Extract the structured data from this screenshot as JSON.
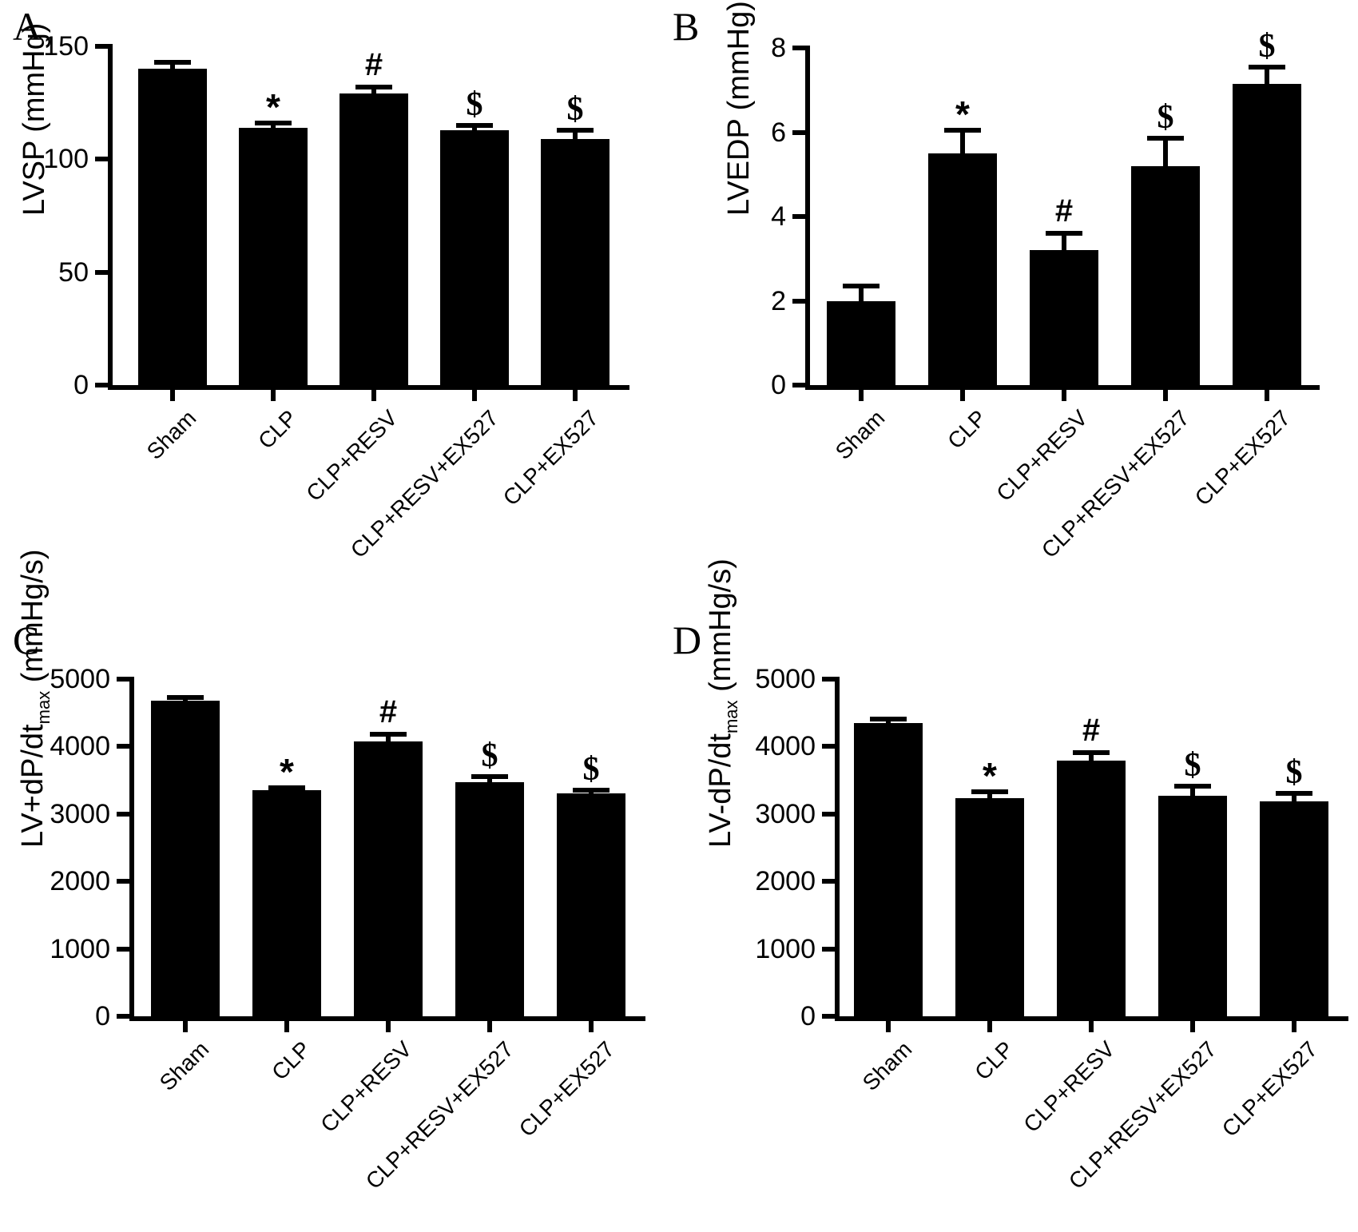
{
  "chart_data": [
    {
      "type": "bar",
      "panel_letter": "A",
      "ylabel": "LVSP (mmHg)",
      "ylabel_sub": "",
      "ylabel_post": "",
      "categories": [
        "Sham",
        "CLP",
        "CLP+RESV",
        "CLP+RESV+EX527",
        "CLP+EX527"
      ],
      "values": [
        140,
        114,
        129,
        113,
        109
      ],
      "error_top": [
        143,
        116,
        132,
        115,
        113
      ],
      "significance": [
        "",
        "*",
        "#",
        "$",
        "$"
      ],
      "ylim": [
        0,
        150
      ],
      "yticks": [
        0,
        50,
        100,
        150
      ],
      "bar_color": "#000000",
      "grid": "off",
      "legend": "none"
    },
    {
      "type": "bar",
      "panel_letter": "B",
      "ylabel": "LVEDP (mmHg)",
      "ylabel_sub": "",
      "ylabel_post": "",
      "categories": [
        "Sham",
        "CLP",
        "CLP+RESV",
        "CLP+RESV+EX527",
        "CLP+EX527"
      ],
      "values": [
        2.0,
        5.5,
        3.2,
        5.2,
        7.15
      ],
      "error_top": [
        2.35,
        6.05,
        3.6,
        5.85,
        7.55
      ],
      "significance": [
        "",
        "*",
        "#",
        "$",
        "$"
      ],
      "ylim": [
        0,
        8
      ],
      "yticks": [
        0,
        2,
        4,
        6,
        8
      ],
      "bar_color": "#000000",
      "grid": "off",
      "legend": "none"
    },
    {
      "type": "bar",
      "panel_letter": "C",
      "ylabel": "LV+dP/dt",
      "ylabel_sub": "max",
      "ylabel_post": " (mmHg/s)",
      "categories": [
        "Sham",
        "CLP",
        "CLP+RESV",
        "CLP+RESV+EX527",
        "CLP+EX527"
      ],
      "values": [
        4680,
        3350,
        4080,
        3470,
        3300
      ],
      "error_top": [
        4730,
        3390,
        4180,
        3560,
        3350
      ],
      "significance": [
        "",
        "*",
        "#",
        "$",
        "$"
      ],
      "ylim": [
        0,
        5000
      ],
      "yticks": [
        0,
        1000,
        2000,
        3000,
        4000,
        5000
      ],
      "bar_color": "#000000",
      "grid": "off",
      "legend": "none"
    },
    {
      "type": "bar",
      "panel_letter": "D",
      "ylabel": "LV-dP/dt",
      "ylabel_sub": "max",
      "ylabel_post": " (mmHg/s)",
      "categories": [
        "Sham",
        "CLP",
        "CLP+RESV",
        "CLP+RESV+EX527",
        "CLP+EX527"
      ],
      "values": [
        4350,
        3230,
        3790,
        3270,
        3190
      ],
      "error_top": [
        4410,
        3330,
        3910,
        3410,
        3300
      ],
      "significance": [
        "",
        "*",
        "#",
        "$",
        "$"
      ],
      "ylim": [
        0,
        5000
      ],
      "yticks": [
        0,
        1000,
        2000,
        3000,
        4000,
        5000
      ],
      "bar_color": "#000000",
      "grid": "off",
      "legend": "none"
    }
  ]
}
